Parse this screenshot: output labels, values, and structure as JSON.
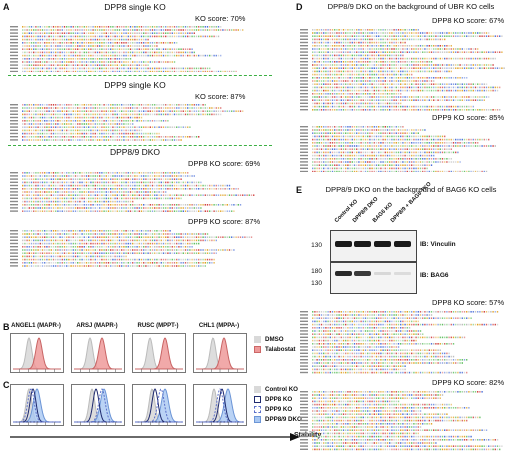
{
  "figure": {
    "panel_a": {
      "letter": "A",
      "blocks": [
        {
          "title": "DPP8 single KO",
          "score": "KO score: 70%"
        },
        {
          "title": "DPP9 single KO",
          "score": "KO score: 87%"
        },
        {
          "title": "DPP8/9 DKO",
          "score": "DPP8 KO score: 69%"
        },
        {
          "title": "",
          "score": "DPP9 KO score: 87%"
        }
      ]
    },
    "panel_b": {
      "letter": "B",
      "histograms": [
        "ANGEL1 (MAPR-)",
        "ARSJ (MAPR-)",
        "RUSC (MPPT-)",
        "CHL1 (MPPA-)"
      ],
      "legend": [
        {
          "label": "DMSO",
          "color": "#d9d9d9"
        },
        {
          "label": "Talabostat",
          "color": "#ee9a9a"
        }
      ]
    },
    "panel_c": {
      "letter": "C",
      "legend": [
        {
          "label": "Control KO",
          "color": "#d9d9d9"
        },
        {
          "label": "DPP8 KO",
          "color": "#1f2a6e"
        },
        {
          "label": "DPP9 KO",
          "color": "#5b6fc9"
        },
        {
          "label": "DPP8/9 DKO",
          "color": "#a9c8f2"
        }
      ],
      "axis_label": "Stability"
    },
    "panel_d": {
      "letter": "D",
      "title": "DPP8/9 DKO on the background of UBR KO cells",
      "scores": [
        "DPP8 KO score: 67%",
        "DPP9 KO score: 85%"
      ]
    },
    "panel_e": {
      "letter": "E",
      "title": "DPP8/9 DKO on the background of BAG6 KO cells",
      "lanes": [
        "Control KO",
        "DPP8/9 DKO",
        "BAG6 KO",
        "DPP8/9 + BAG6 TKO"
      ],
      "blots": [
        {
          "label": "IB: Vinculin",
          "markers": [
            "130"
          ]
        },
        {
          "label": "IB: BAG6",
          "markers": [
            "180",
            "130"
          ]
        }
      ],
      "scores": [
        "DPP8 KO score: 57%",
        "DPP9 KO score: 82%"
      ]
    }
  }
}
